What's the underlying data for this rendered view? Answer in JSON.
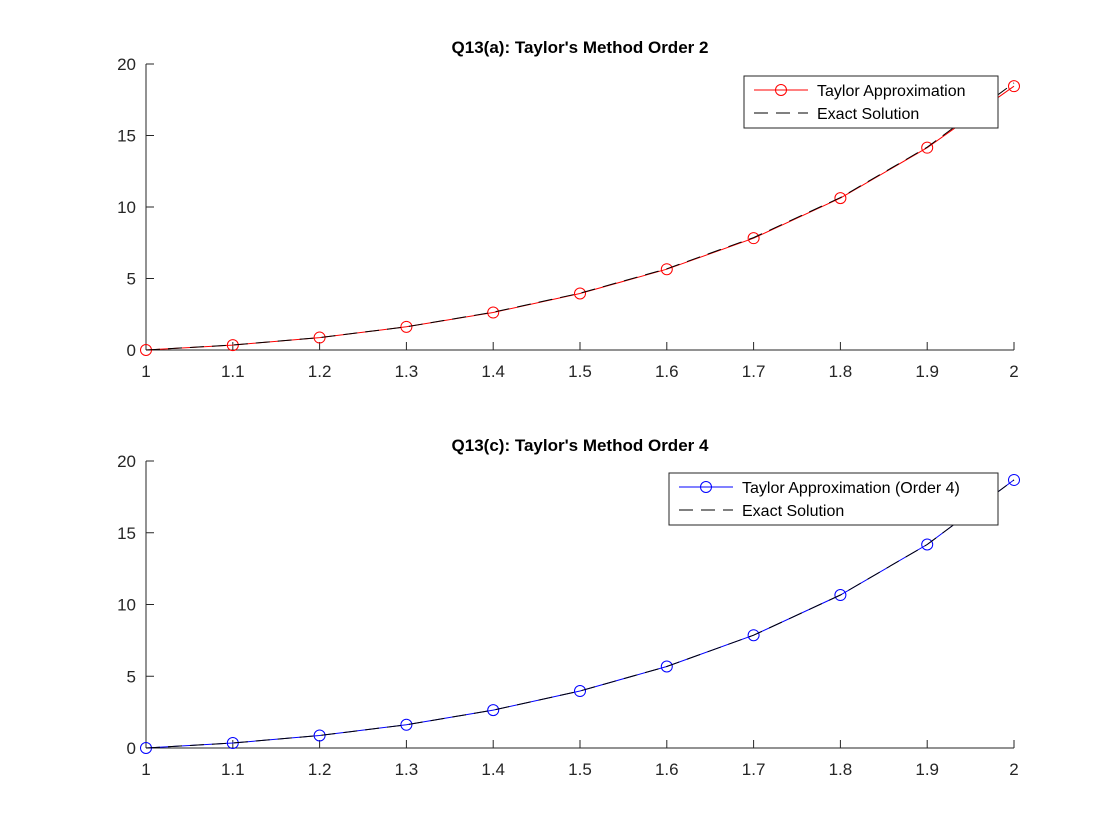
{
  "chart_data": [
    {
      "type": "line",
      "title": "Q13(a): Taylor's Method Order 2",
      "xlabel": "",
      "ylabel": "",
      "xlim": [
        1,
        2
      ],
      "ylim": [
        0,
        20
      ],
      "xticks": [
        1,
        1.1,
        1.2,
        1.3,
        1.4,
        1.5,
        1.6,
        1.7,
        1.8,
        1.9,
        2
      ],
      "xtick_labels": [
        "1",
        "1.1",
        "1.2",
        "1.3",
        "1.4",
        "1.5",
        "1.6",
        "1.7",
        "1.8",
        "1.9",
        "2"
      ],
      "yticks": [
        0,
        5,
        10,
        15,
        20
      ],
      "ytick_labels": [
        "0",
        "5",
        "10",
        "15",
        "20"
      ],
      "grid": false,
      "legend_position": "top-right",
      "series": [
        {
          "name": "Taylor Approximation",
          "color": "#ff0000",
          "style": "solid",
          "marker": "circle",
          "x": [
            1,
            1.1,
            1.2,
            1.3,
            1.4,
            1.5,
            1.6,
            1.7,
            1.8,
            1.9,
            2
          ],
          "y": [
            0,
            0.34,
            0.87,
            1.62,
            2.62,
            3.95,
            5.65,
            7.82,
            10.62,
            14.15,
            18.45
          ]
        },
        {
          "name": "Exact Solution",
          "color": "#000000",
          "style": "dashed",
          "marker": "none",
          "x": [
            1,
            1.1,
            1.2,
            1.3,
            1.4,
            1.5,
            1.6,
            1.7,
            1.8,
            1.9,
            2
          ],
          "y": [
            0,
            0.35,
            0.87,
            1.62,
            2.64,
            3.97,
            5.68,
            7.86,
            10.66,
            14.18,
            18.68
          ]
        }
      ]
    },
    {
      "type": "line",
      "title": "Q13(c): Taylor's Method Order 4",
      "xlabel": "",
      "ylabel": "",
      "xlim": [
        1,
        2
      ],
      "ylim": [
        0,
        20
      ],
      "xticks": [
        1,
        1.1,
        1.2,
        1.3,
        1.4,
        1.5,
        1.6,
        1.7,
        1.8,
        1.9,
        2
      ],
      "xtick_labels": [
        "1",
        "1.1",
        "1.2",
        "1.3",
        "1.4",
        "1.5",
        "1.6",
        "1.7",
        "1.8",
        "1.9",
        "2"
      ],
      "yticks": [
        0,
        5,
        10,
        15,
        20
      ],
      "ytick_labels": [
        "0",
        "5",
        "10",
        "15",
        "20"
      ],
      "grid": false,
      "legend_position": "top-right",
      "series": [
        {
          "name": "Taylor Approximation (Order 4)",
          "color": "#0000ff",
          "style": "solid",
          "marker": "circle",
          "x": [
            1,
            1.1,
            1.2,
            1.3,
            1.4,
            1.5,
            1.6,
            1.7,
            1.8,
            1.9,
            2
          ],
          "y": [
            0,
            0.35,
            0.87,
            1.62,
            2.64,
            3.97,
            5.68,
            7.86,
            10.66,
            14.18,
            18.68
          ]
        },
        {
          "name": "Exact Solution",
          "color": "#000000",
          "style": "dashed",
          "marker": "none",
          "x": [
            1,
            1.1,
            1.2,
            1.3,
            1.4,
            1.5,
            1.6,
            1.7,
            1.8,
            1.9,
            2
          ],
          "y": [
            0,
            0.35,
            0.87,
            1.62,
            2.64,
            3.97,
            5.68,
            7.86,
            10.66,
            14.18,
            18.68
          ]
        }
      ]
    }
  ]
}
